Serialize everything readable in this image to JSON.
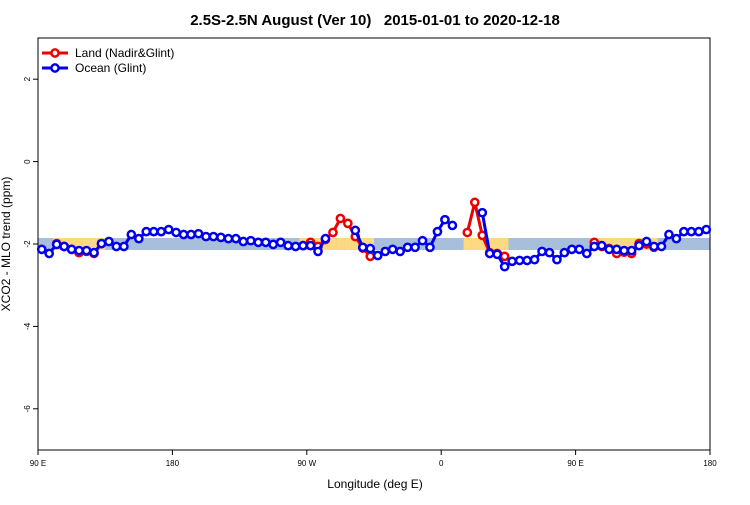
{
  "chart_data": {
    "type": "line",
    "title": "2.5S-2.5N August (Ver 10)   2015-01-01 to 2020-12-18",
    "xlabel": "Longitude (deg E)",
    "ylabel": "XCO2 - MLO trend (ppm)",
    "xlim": [
      90,
      540
    ],
    "ylim": [
      -7,
      3
    ],
    "xticks": [
      {
        "value": 90,
        "label": "90 E"
      },
      180,
      {
        "value": 270,
        "label": "90 W"
      },
      {
        "value": 360,
        "label": "0"
      },
      {
        "value": 450,
        "label": "90 E"
      },
      {
        "value": 540,
        "label": "180"
      }
    ],
    "yticks": [
      -6,
      -4,
      -2,
      0,
      2
    ],
    "legend": "upper left",
    "x": [
      92.5,
      97.5,
      102.5,
      107.5,
      112.5,
      117.5,
      122.5,
      127.5,
      132.5,
      137.5,
      142.5,
      147.5,
      152.5,
      157.5,
      162.5,
      167.5,
      172.5,
      177.5,
      182.5,
      187.5,
      192.5,
      197.5,
      202.5,
      207.5,
      212.5,
      217.5,
      222.5,
      227.5,
      232.5,
      237.5,
      242.5,
      247.5,
      252.5,
      257.5,
      262.5,
      267.5,
      272.5,
      277.5,
      282.5,
      287.5,
      292.5,
      297.5,
      302.5,
      307.5,
      312.5,
      317.5,
      322.5,
      327.5,
      332.5,
      337.5,
      342.5,
      347.5,
      352.5,
      357.5,
      362.5,
      367.5,
      372.5,
      377.5,
      382.5,
      387.5,
      392.5,
      397.5,
      402.5,
      407.5,
      412.5,
      417.5,
      422.5,
      427.5,
      432.5,
      437.5,
      442.5,
      447.5,
      452.5,
      457.5,
      462.5,
      467.5,
      472.5,
      477.5,
      482.5,
      487.5,
      492.5,
      497.5,
      502.5,
      507.5,
      512.5,
      517.5,
      522.5,
      527.5,
      532.5,
      537.5
    ],
    "series": [
      {
        "name": "Land (Nadir&Glint)",
        "color": "#ee0000",
        "values": [
          null,
          null,
          -1.99,
          -2.06,
          -2.13,
          -2.21,
          -2.18,
          -2.23,
          -1.99,
          null,
          null,
          null,
          null,
          null,
          null,
          null,
          null,
          null,
          null,
          null,
          null,
          null,
          null,
          null,
          null,
          null,
          null,
          null,
          null,
          null,
          null,
          null,
          null,
          null,
          null,
          -2.04,
          -1.96,
          -2.06,
          -1.89,
          -1.72,
          -1.38,
          -1.5,
          -1.82,
          -2.1,
          -2.3,
          null,
          null,
          null,
          null,
          null,
          null,
          null,
          null,
          null,
          null,
          null,
          null,
          -1.72,
          -0.99,
          -1.79,
          -2.21,
          -2.23,
          -2.3,
          null,
          null,
          null,
          null,
          null,
          null,
          null,
          null,
          null,
          null,
          null,
          -1.96,
          -2.06,
          -2.11,
          -2.23,
          -2.2,
          -2.23,
          -1.99,
          -2.0,
          -2.08,
          null,
          null,
          null,
          null,
          null,
          null,
          null
        ]
      },
      {
        "name": "Ocean (Glint)",
        "color": "#0000ee",
        "values": [
          -2.13,
          -2.23,
          -2.01,
          -2.06,
          -2.13,
          -2.16,
          -2.16,
          -2.21,
          -1.99,
          -1.94,
          -2.06,
          -2.06,
          -1.77,
          -1.87,
          -1.7,
          -1.7,
          -1.7,
          -1.65,
          -1.72,
          -1.77,
          -1.77,
          -1.75,
          -1.82,
          -1.82,
          -1.84,
          -1.87,
          -1.87,
          -1.94,
          -1.92,
          -1.96,
          -1.96,
          -2.01,
          -1.96,
          -2.04,
          -2.06,
          -2.04,
          -2.04,
          -2.18,
          -1.87,
          null,
          null,
          null,
          -1.67,
          -2.08,
          -2.11,
          -2.28,
          -2.18,
          -2.13,
          -2.18,
          -2.08,
          -2.08,
          -1.92,
          -2.08,
          -1.7,
          -1.41,
          -1.55,
          null,
          null,
          null,
          -1.24,
          -2.23,
          -2.25,
          -2.55,
          -2.42,
          -2.4,
          -2.4,
          -2.38,
          -2.18,
          -2.21,
          -2.38,
          -2.21,
          -2.13,
          -2.13,
          -2.23,
          -2.06,
          -2.04,
          -2.13,
          -2.13,
          -2.16,
          -2.16,
          -2.04,
          -1.94,
          -2.06,
          -2.06,
          -1.77,
          -1.87,
          -1.7,
          -1.7,
          -1.7,
          -1.65
        ]
      }
    ]
  }
}
